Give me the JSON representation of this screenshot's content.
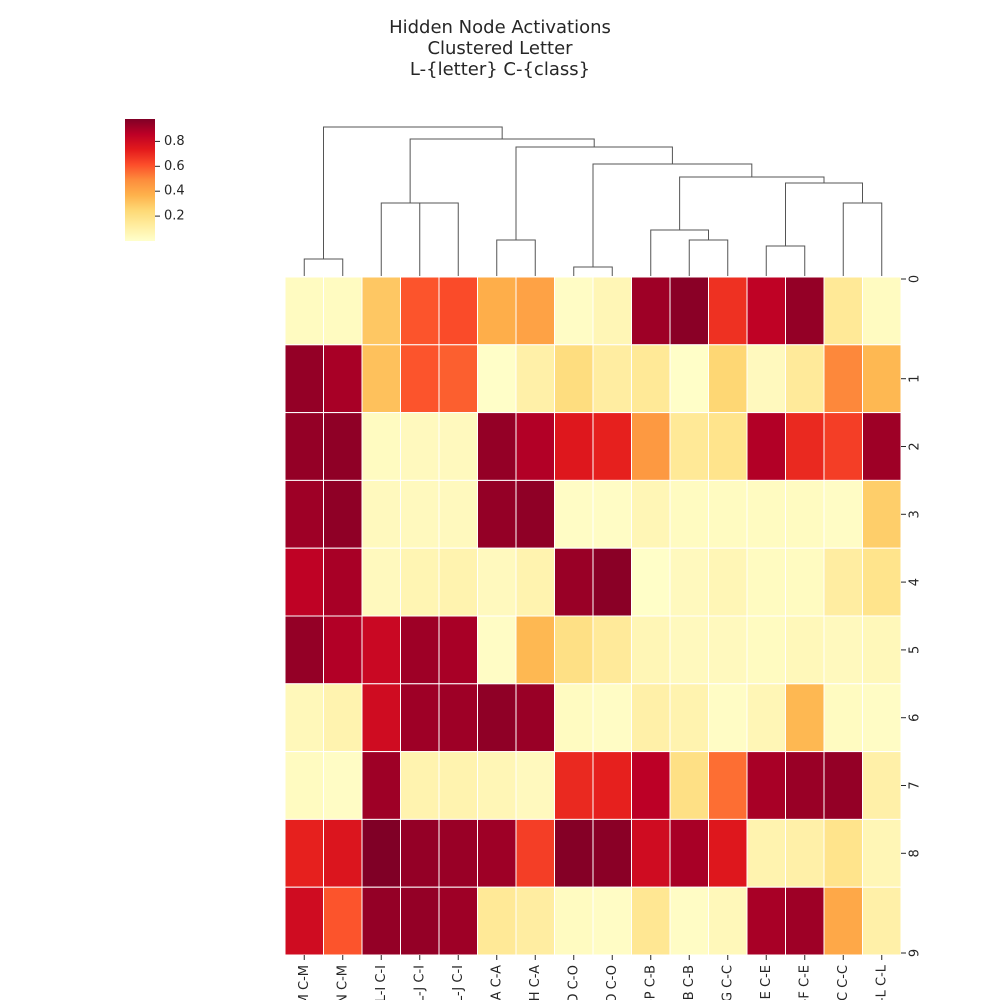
{
  "chart_data": {
    "type": "heatmap",
    "title_lines": [
      "Hidden Node Activations",
      "Clustered Letter",
      "L-{letter} C-{class}"
    ],
    "columns": [
      "L-M C-M",
      "L-N C-M",
      "L-I C-I",
      "L-J C-I",
      "L-J C-I",
      "L-A C-A",
      "L-H C-A",
      "L-D C-O",
      "L-O C-O",
      "L-P C-B",
      "L-B C-B",
      "L-G C-C",
      "L-E C-E",
      "L-F C-E",
      "L-C C-C",
      "L-L C-L"
    ],
    "rows": [
      "0",
      "1",
      "2",
      "3",
      "4",
      "5",
      "6",
      "7",
      "8",
      "9"
    ],
    "values": [
      [
        0.03,
        0.03,
        0.3,
        0.6,
        0.62,
        0.38,
        0.42,
        0.02,
        0.06,
        0.92,
        0.96,
        0.68,
        0.85,
        0.94,
        0.15,
        0.03
      ],
      [
        0.94,
        0.9,
        0.32,
        0.6,
        0.58,
        0.01,
        0.1,
        0.22,
        0.12,
        0.15,
        0.01,
        0.25,
        0.04,
        0.14,
        0.5,
        0.35
      ],
      [
        0.94,
        0.95,
        0.03,
        0.04,
        0.04,
        0.94,
        0.88,
        0.75,
        0.72,
        0.45,
        0.15,
        0.18,
        0.88,
        0.7,
        0.65,
        0.92
      ],
      [
        0.92,
        0.95,
        0.04,
        0.04,
        0.04,
        0.94,
        0.95,
        0.02,
        0.02,
        0.06,
        0.03,
        0.03,
        0.03,
        0.03,
        0.02,
        0.28
      ],
      [
        0.85,
        0.9,
        0.04,
        0.07,
        0.08,
        0.04,
        0.08,
        0.93,
        0.96,
        0.01,
        0.04,
        0.06,
        0.03,
        0.03,
        0.12,
        0.18
      ],
      [
        0.94,
        0.88,
        0.82,
        0.92,
        0.9,
        0.02,
        0.35,
        0.2,
        0.14,
        0.06,
        0.04,
        0.04,
        0.03,
        0.05,
        0.04,
        0.05
      ],
      [
        0.05,
        0.08,
        0.8,
        0.92,
        0.92,
        0.95,
        0.93,
        0.03,
        0.02,
        0.1,
        0.08,
        0.02,
        0.06,
        0.35,
        0.03,
        0.02
      ],
      [
        0.03,
        0.02,
        0.92,
        0.08,
        0.08,
        0.06,
        0.04,
        0.7,
        0.72,
        0.86,
        0.2,
        0.55,
        0.9,
        0.93,
        0.94,
        0.1
      ],
      [
        0.72,
        0.76,
        0.98,
        0.94,
        0.93,
        0.92,
        0.65,
        0.97,
        0.96,
        0.8,
        0.9,
        0.75,
        0.08,
        0.1,
        0.18,
        0.06
      ],
      [
        0.8,
        0.6,
        0.94,
        0.94,
        0.92,
        0.15,
        0.12,
        0.03,
        0.02,
        0.16,
        0.02,
        0.05,
        0.9,
        0.92,
        0.4,
        0.1
      ]
    ],
    "colormap": "YlOrRd",
    "colorbar": {
      "ticks": [
        0.2,
        0.4,
        0.6,
        0.8
      ],
      "vmin": 0.0,
      "vmax": 0.98,
      "placement": "top-left"
    },
    "column_dendrogram": true,
    "gridlines": "white"
  }
}
